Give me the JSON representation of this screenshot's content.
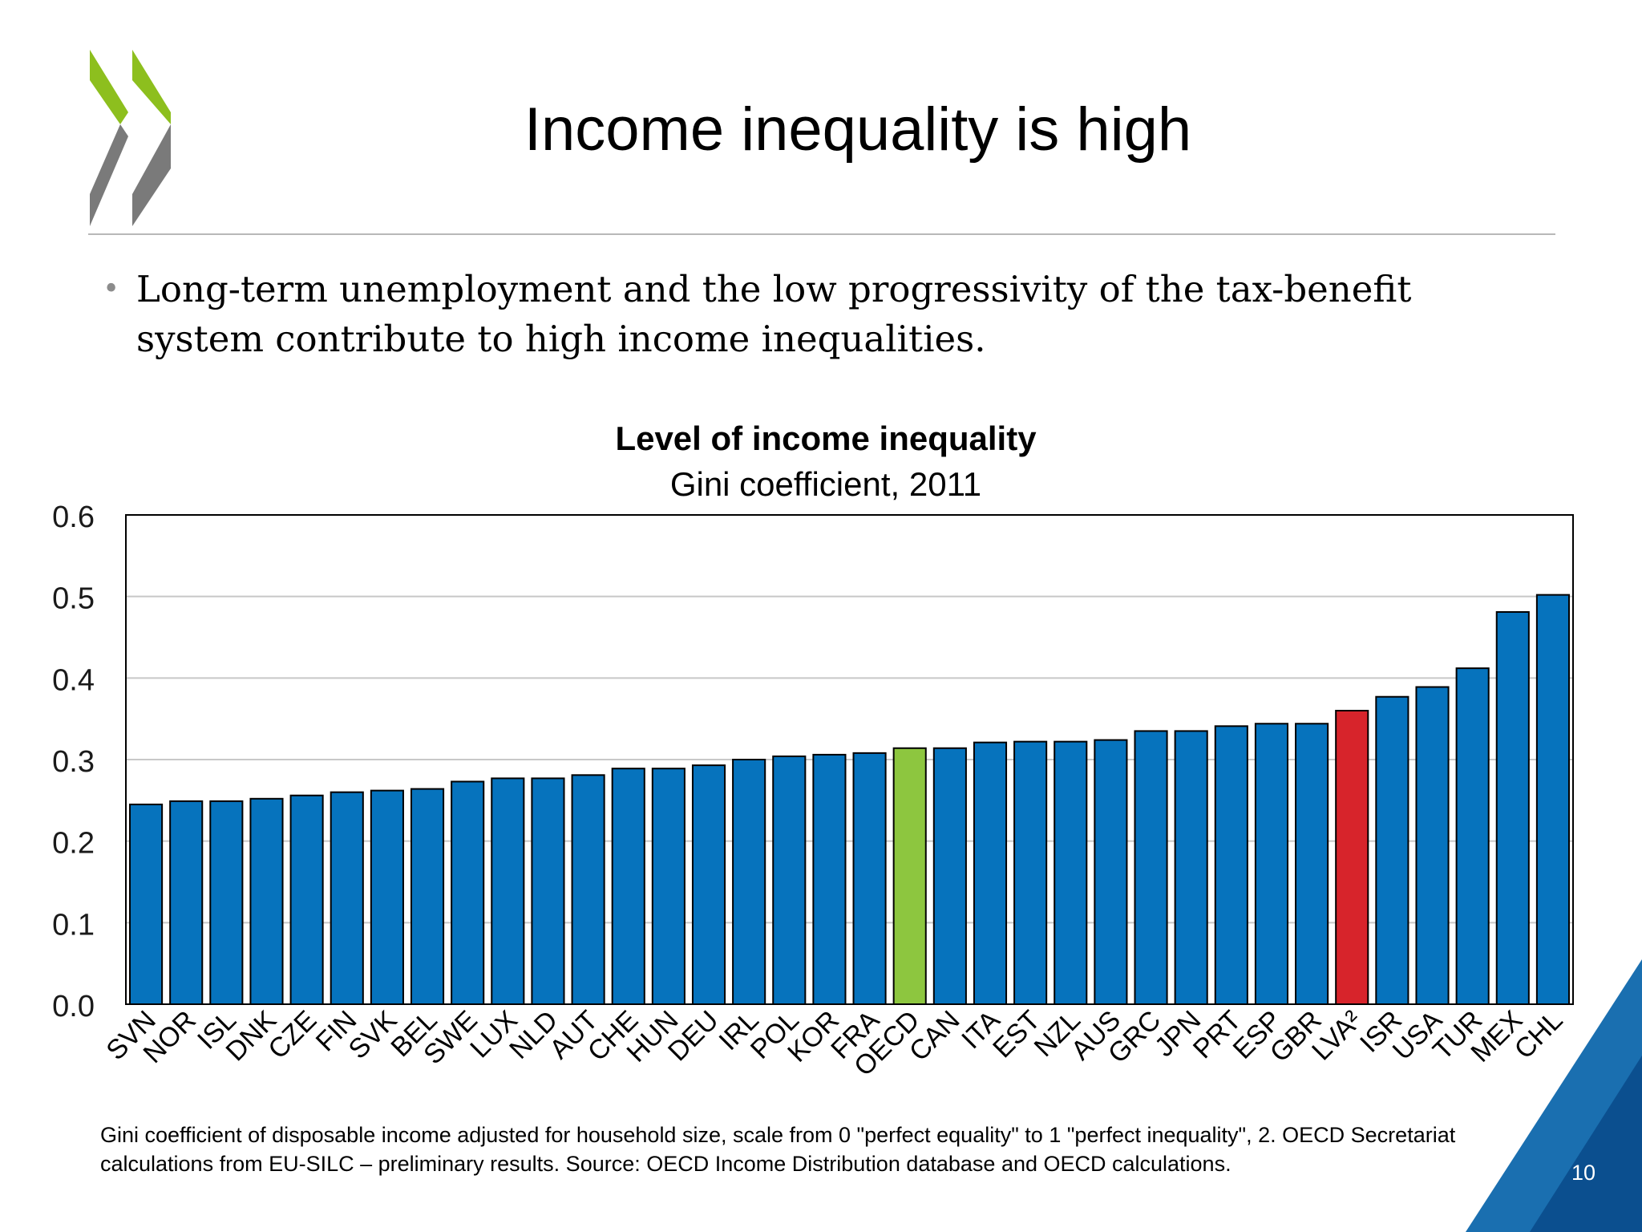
{
  "slide": {
    "title": "Income inequality is high",
    "bullet": "Long-term unemployment and the low progressivity of the tax-benefit system contribute to high income inequalities.",
    "footnote": "Gini coefficient of disposable income adjusted for household size, scale from 0 \"perfect equality\" to 1 \"perfect inequality\", 2. OECD Secretariat calculations from EU-SILC – preliminary results. Source: OECD Income Distribution database and OECD calculations.",
    "page_number": "10",
    "logo_colors": {
      "green": "#8dbf1e",
      "grey": "#7a7a7a"
    },
    "corner_colors": {
      "light": "#1a6fb0",
      "dark": "#0b4f8f"
    }
  },
  "chart_data": {
    "type": "bar",
    "title": "Level of income inequality",
    "subtitle": "Gini coefficient, 2011",
    "xlabel": "",
    "ylabel": "",
    "ylim": [
      0,
      0.6
    ],
    "yticks": [
      "0.0",
      "0.1",
      "0.2",
      "0.3",
      "0.4",
      "0.5",
      "0.6"
    ],
    "grid": true,
    "categories": [
      "SVN",
      "NOR",
      "ISL",
      "DNK",
      "CZE",
      "FIN",
      "SVK",
      "BEL",
      "SWE",
      "LUX",
      "NLD",
      "AUT",
      "CHE",
      "HUN",
      "DEU",
      "IRL",
      "POL",
      "KOR",
      "FRA",
      "OECD",
      "CAN",
      "ITA",
      "EST",
      "NZL",
      "AUS",
      "GRC",
      "JPN",
      "PRT",
      "ESP",
      "GBR",
      "LVA²",
      "ISR",
      "USA",
      "TUR",
      "MEX",
      "CHL"
    ],
    "values": [
      0.245,
      0.249,
      0.249,
      0.252,
      0.256,
      0.26,
      0.262,
      0.264,
      0.273,
      0.277,
      0.277,
      0.281,
      0.289,
      0.289,
      0.293,
      0.3,
      0.304,
      0.306,
      0.308,
      0.314,
      0.314,
      0.321,
      0.322,
      0.322,
      0.324,
      0.335,
      0.335,
      0.341,
      0.344,
      0.344,
      0.36,
      0.377,
      0.389,
      0.412,
      0.481,
      0.502
    ],
    "colors": {
      "default": "#0673bd",
      "highlight_oecd": "#8dc63f",
      "highlight_lva": "#d7242b"
    },
    "highlights": {
      "OECD": "highlight_oecd",
      "LVA²": "highlight_lva"
    }
  }
}
